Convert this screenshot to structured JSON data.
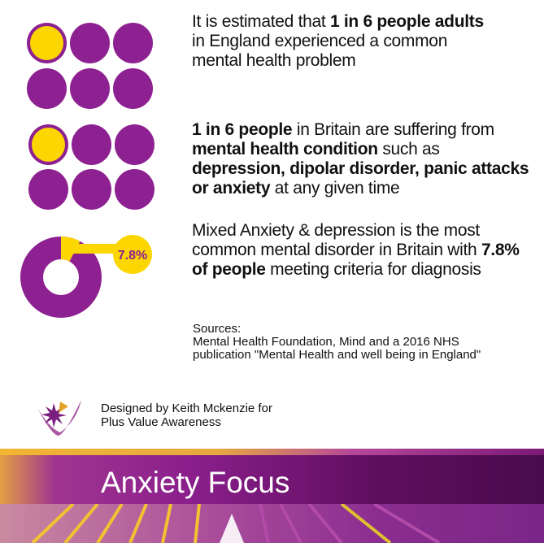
{
  "colors": {
    "purple": "#8e2191",
    "yellow": "#fcd600"
  },
  "stat1": {
    "segments": [
      {
        "text": "It is estimated that ",
        "bold": false
      },
      {
        "text": "1 in  6 people adults",
        "bold": true
      },
      {
        "text": " in England experienced a common mental health problem",
        "bold": false
      }
    ],
    "highlighted": 1,
    "total": 6
  },
  "stat2": {
    "segments": [
      {
        "text": "1 in 6 people",
        "bold": true
      },
      {
        "text": " in Britain are suffering from ",
        "bold": false
      },
      {
        "text": "mental health condition",
        "bold": true
      },
      {
        "text": " such as ",
        "bold": false
      },
      {
        "text": "depression, dipolar disorder, panic attacks or anxiety",
        "bold": true
      },
      {
        "text": " at any given time",
        "bold": false
      }
    ],
    "highlighted": 1,
    "total": 6
  },
  "stat3": {
    "segments": [
      {
        "text": "Mixed Anxiety & depression is the most common mental disorder in Britain with  ",
        "bold": false
      },
      {
        "text": "7.8% of people",
        "bold": true
      },
      {
        "text": " meeting criteria for diagnosis",
        "bold": false
      }
    ],
    "donut_label": "7.8%",
    "percent": 7.8
  },
  "sources": {
    "heading": "Sources:",
    "line1": "Mental Health Foundation, Mind and a 2016 NHS",
    "line2": "publication \"Mental Health and well being in England\""
  },
  "credit": {
    "line1": "Designed by Keith Mckenzie for",
    "line2": "Plus Value Awareness",
    "logo_icon": "plus-value-star-logo"
  },
  "banner": {
    "title": "Anxiety Focus"
  }
}
